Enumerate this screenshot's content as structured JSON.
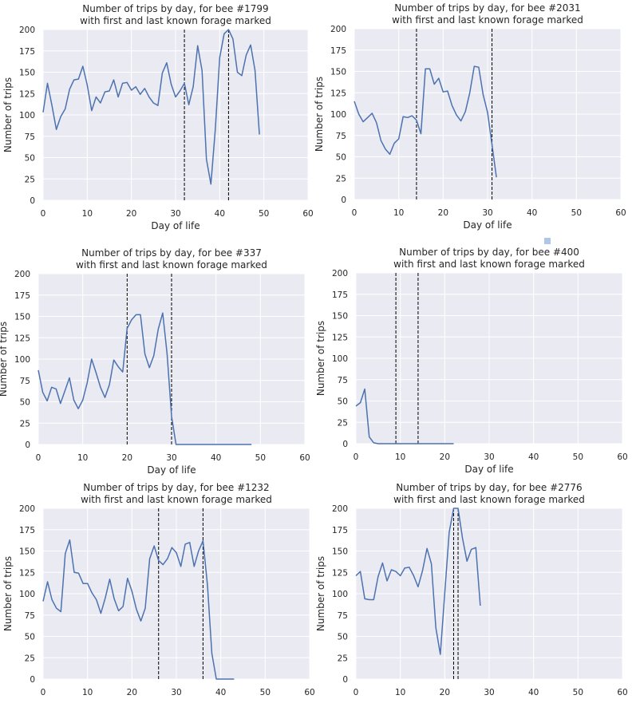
{
  "colors": {
    "background": "#eaeaf2",
    "line": "#4c72b0",
    "grid": "#ffffff",
    "marker_line": "#000000",
    "legend_square": "#aec7e8"
  },
  "chart_data": [
    {
      "type": "line",
      "title": "Number of trips by day, for bee #1799\nwith first and last known forage marked",
      "xlabel": "Day of life",
      "ylabel": "Number of trips",
      "xlim": [
        0,
        60
      ],
      "ylim": [
        0,
        200
      ],
      "xticks": [
        "0",
        "10",
        "20",
        "30",
        "40",
        "50",
        "60"
      ],
      "yticks": [
        "0",
        "25",
        "50",
        "75",
        "100",
        "125",
        "150",
        "175",
        "200"
      ],
      "grid": true,
      "x": [
        0,
        1,
        2,
        3,
        4,
        5,
        6,
        7,
        8,
        9,
        10,
        11,
        12,
        13,
        14,
        15,
        16,
        17,
        18,
        19,
        20,
        21,
        22,
        23,
        24,
        25,
        26,
        27,
        28,
        29,
        30,
        31,
        32,
        33,
        34,
        35,
        36,
        37,
        38,
        39,
        40,
        41,
        42,
        43,
        44,
        45,
        46,
        47,
        48,
        49
      ],
      "y": [
        103,
        137,
        111,
        83,
        98,
        107,
        130,
        141,
        142,
        157,
        135,
        105,
        121,
        114,
        127,
        128,
        141,
        121,
        137,
        138,
        129,
        133,
        124,
        131,
        121,
        114,
        111,
        149,
        161,
        136,
        121,
        128,
        137,
        112,
        133,
        181,
        152,
        48,
        19,
        83,
        167,
        195,
        200,
        189,
        150,
        146,
        170,
        182,
        152,
        77
      ],
      "vlines": [
        32,
        42
      ]
    },
    {
      "type": "line",
      "title": "Number of trips by day, for bee #2031\nwith first and last known forage marked",
      "xlabel": "Day of life",
      "ylabel": "Number of trips",
      "xlim": [
        0,
        60
      ],
      "ylim": [
        0,
        200
      ],
      "xticks": [
        "0",
        "10",
        "20",
        "30",
        "40",
        "50",
        "60"
      ],
      "yticks": [
        "0",
        "25",
        "50",
        "75",
        "100",
        "125",
        "150",
        "175",
        "200"
      ],
      "grid": true,
      "x": [
        0,
        1,
        2,
        3,
        4,
        5,
        6,
        7,
        8,
        9,
        10,
        11,
        12,
        13,
        14,
        15,
        16,
        17,
        18,
        19,
        20,
        21,
        22,
        23,
        24,
        25,
        26,
        27,
        28,
        29,
        30,
        31,
        32
      ],
      "y": [
        115,
        100,
        91,
        96,
        101,
        90,
        69,
        59,
        53,
        66,
        71,
        97,
        96,
        98,
        93,
        77,
        153,
        153,
        135,
        142,
        126,
        127,
        110,
        99,
        92,
        103,
        125,
        156,
        155,
        123,
        102,
        64,
        26
      ],
      "vlines": [
        14,
        31
      ]
    },
    {
      "type": "line",
      "title": "Number of trips by day, for bee #337\nwith first and last known forage marked",
      "xlabel": "Day of life",
      "ylabel": "Number of trips",
      "xlim": [
        0,
        60
      ],
      "ylim": [
        0,
        200
      ],
      "xticks": [
        "0",
        "10",
        "20",
        "30",
        "40",
        "50",
        "60"
      ],
      "yticks": [
        "0",
        "25",
        "50",
        "75",
        "100",
        "125",
        "150",
        "175",
        "200"
      ],
      "grid": true,
      "x": [
        0,
        1,
        2,
        3,
        4,
        5,
        6,
        7,
        8,
        9,
        10,
        11,
        12,
        13,
        14,
        15,
        16,
        17,
        18,
        19,
        20,
        21,
        22,
        23,
        24,
        25,
        26,
        27,
        28,
        29,
        30,
        31,
        32,
        33,
        34,
        35,
        36,
        37,
        38,
        39,
        40,
        41,
        42,
        43,
        44,
        45,
        46,
        47,
        48
      ],
      "y": [
        87,
        61,
        51,
        67,
        65,
        48,
        63,
        78,
        52,
        42,
        52,
        72,
        100,
        84,
        67,
        55,
        70,
        99,
        91,
        85,
        136,
        146,
        152,
        152,
        106,
        90,
        104,
        135,
        154,
        106,
        33,
        0,
        0,
        0,
        0,
        0,
        0,
        0,
        0,
        0,
        0,
        0,
        0,
        0,
        0,
        0,
        0,
        0,
        0
      ],
      "vlines": [
        20,
        30
      ]
    },
    {
      "type": "line",
      "title": "Number of trips by day, for bee #400\nwith first and last known forage marked",
      "xlabel": "Day of life",
      "ylabel": "Number of trips",
      "xlim": [
        0,
        60
      ],
      "ylim": [
        0,
        200
      ],
      "xticks": [
        "0",
        "10",
        "20",
        "30",
        "40",
        "50",
        "60"
      ],
      "yticks": [
        "0",
        "25",
        "50",
        "75",
        "100",
        "125",
        "150",
        "175",
        "200"
      ],
      "grid": true,
      "x": [
        0,
        1,
        2,
        3,
        4,
        5,
        6,
        7,
        8,
        9,
        10,
        11,
        12,
        13,
        14,
        15,
        16,
        17,
        18,
        19,
        20,
        21,
        22
      ],
      "y": [
        44,
        48,
        64,
        8,
        1,
        0,
        0,
        0,
        0,
        0,
        0,
        0,
        0,
        0,
        0,
        0,
        0,
        0,
        0,
        0,
        0,
        0,
        0
      ],
      "vlines": [
        9,
        14
      ]
    },
    {
      "type": "line",
      "title": "Number of trips by day, for bee #1232\nwith first and last known forage marked",
      "xlabel": "",
      "ylabel": "Number of trips",
      "xlim": [
        0,
        60
      ],
      "ylim": [
        0,
        200
      ],
      "xticks": [
        "0",
        "10",
        "20",
        "30",
        "40",
        "50",
        "60"
      ],
      "yticks": [
        "0",
        "25",
        "50",
        "75",
        "100",
        "125",
        "150",
        "175",
        "200"
      ],
      "grid": true,
      "x": [
        0,
        1,
        2,
        3,
        4,
        5,
        6,
        7,
        8,
        9,
        10,
        11,
        12,
        13,
        14,
        15,
        16,
        17,
        18,
        19,
        20,
        21,
        22,
        23,
        24,
        25,
        26,
        27,
        28,
        29,
        30,
        31,
        32,
        33,
        34,
        35,
        36,
        37,
        38,
        39,
        40,
        41,
        42,
        43
      ],
      "y": [
        91,
        114,
        93,
        83,
        79,
        147,
        163,
        125,
        124,
        112,
        112,
        101,
        93,
        77,
        95,
        117,
        94,
        80,
        85,
        118,
        103,
        82,
        68,
        83,
        141,
        156,
        139,
        134,
        141,
        154,
        148,
        132,
        158,
        160,
        132,
        150,
        162,
        110,
        30,
        0,
        0,
        0,
        0,
        0
      ],
      "vlines": [
        26,
        36
      ]
    },
    {
      "type": "line",
      "title": "Number of trips by day, for bee #2776\nwith first and last known forage marked",
      "xlabel": "",
      "ylabel": "Number of trips",
      "xlim": [
        0,
        60
      ],
      "ylim": [
        0,
        200
      ],
      "xticks": [
        "0",
        "10",
        "20",
        "30",
        "40",
        "50",
        "60"
      ],
      "yticks": [
        "0",
        "25",
        "50",
        "75",
        "100",
        "125",
        "150",
        "175",
        "200"
      ],
      "grid": true,
      "x": [
        0,
        1,
        2,
        3,
        4,
        5,
        6,
        7,
        8,
        9,
        10,
        11,
        12,
        13,
        14,
        15,
        16,
        17,
        18,
        19,
        20,
        21,
        22,
        23,
        24,
        25,
        26,
        27,
        28
      ],
      "y": [
        121,
        126,
        94,
        93,
        93,
        120,
        136,
        115,
        128,
        126,
        121,
        130,
        131,
        121,
        108,
        127,
        153,
        135,
        60,
        29,
        100,
        172,
        200,
        200,
        165,
        138,
        152,
        154,
        86
      ],
      "vlines": [
        22,
        23
      ]
    }
  ]
}
